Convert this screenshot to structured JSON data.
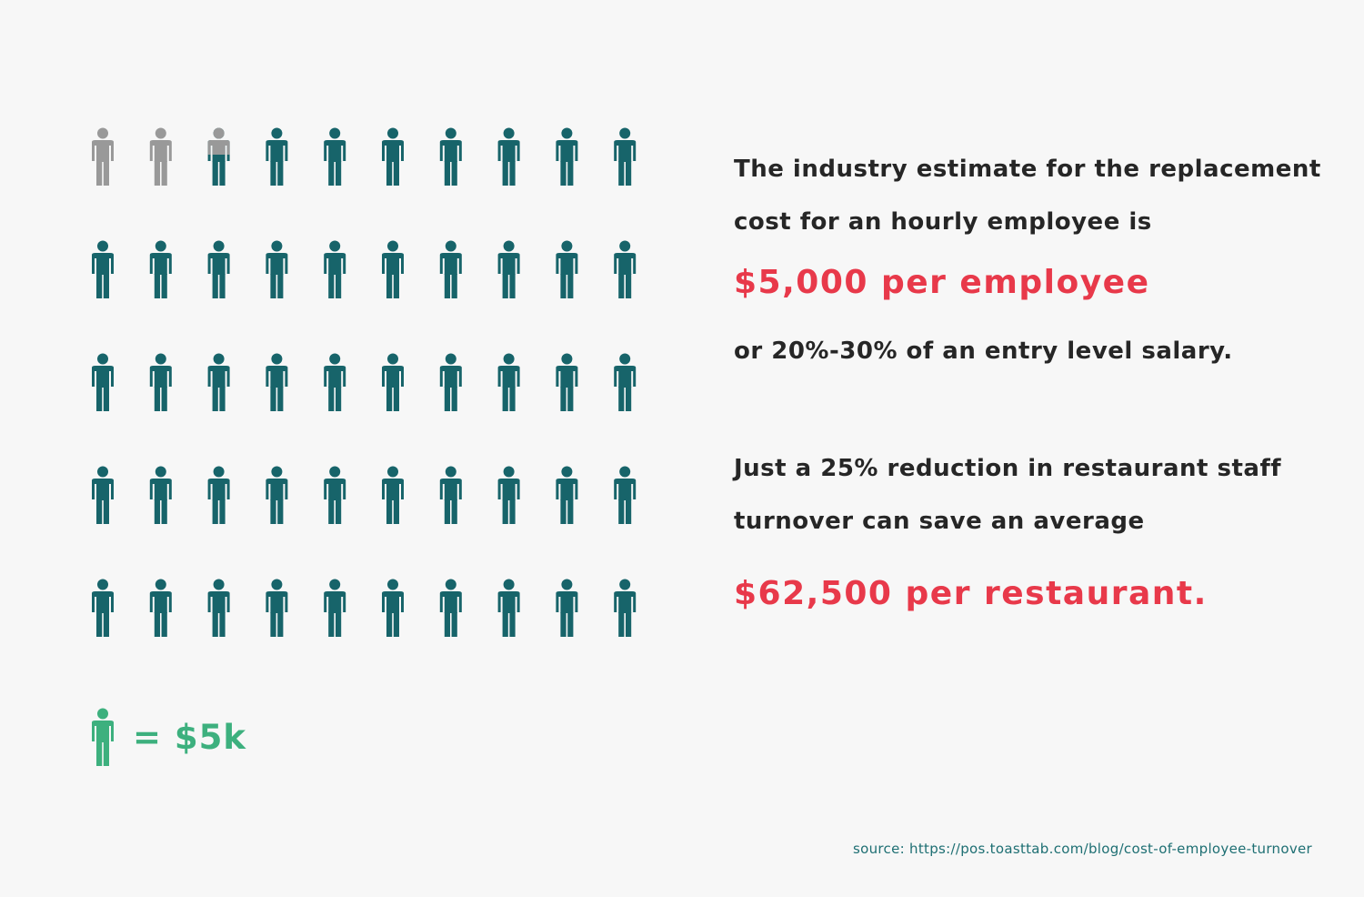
{
  "chart_data": {
    "type": "pictograph",
    "unit_value_label": "$5k",
    "total_icons": 50,
    "filled_icons": 47.5,
    "colors": {
      "filled": "#17646a",
      "empty": "#999999",
      "legend": "#3db07e"
    }
  },
  "text": {
    "p1_line1": "The industry estimate for the replacement",
    "p1_line2": "cost for an hourly employee is",
    "highlight1": "$5,000 per employee",
    "p1_line3": "or 20%-30% of an entry level salary.",
    "p2_line1": "Just a 25% reduction in restaurant staff",
    "p2_line2": "turnover can save an average",
    "highlight2": "$62,500 per restaurant."
  },
  "legend": {
    "label": "= $5k",
    "icon": "person-icon"
  },
  "source": "source: https://pos.toasttab.com/blog/cost-of-employee-turnover"
}
